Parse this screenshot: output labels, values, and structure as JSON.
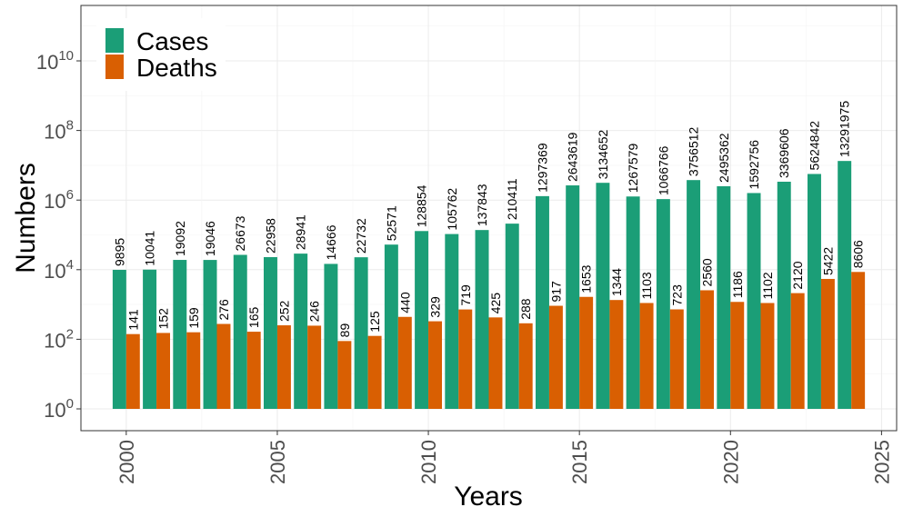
{
  "chart_data": {
    "type": "bar",
    "xlabel": "Years",
    "ylabel": "Numbers",
    "y_scale": "log10",
    "ylim": [
      1,
      100000000000
    ],
    "y_ticks": [
      {
        "value": 1,
        "base": "10",
        "exp": "0"
      },
      {
        "value": 100,
        "base": "10",
        "exp": "2"
      },
      {
        "value": 10000,
        "base": "10",
        "exp": "4"
      },
      {
        "value": 1000000,
        "base": "10",
        "exp": "6"
      },
      {
        "value": 100000000,
        "base": "10",
        "exp": "8"
      },
      {
        "value": 10000000000,
        "base": "10",
        "exp": "10"
      }
    ],
    "xlim": [
      1998.5,
      2025.5
    ],
    "x_ticks": [
      "2000",
      "2005",
      "2010",
      "2015",
      "2020",
      "2025"
    ],
    "grid": true,
    "legend_position": "top-left",
    "x": [
      2000,
      2001,
      2002,
      2003,
      2004,
      2005,
      2006,
      2007,
      2008,
      2009,
      2010,
      2011,
      2012,
      2013,
      2014,
      2015,
      2016,
      2017,
      2018,
      2019,
      2020,
      2021,
      2022,
      2023,
      2024
    ],
    "series": [
      {
        "name": "Cases",
        "color": "#1b9e77",
        "values": [
          9895,
          10041,
          19092,
          19046,
          26673,
          22958,
          28941,
          14666,
          22732,
          52571,
          128854,
          105762,
          137843,
          210411,
          1297369,
          2643619,
          3134652,
          1267579,
          1066766,
          3756512,
          2495362,
          1592756,
          3369606,
          5624842,
          13291975
        ]
      },
      {
        "name": "Deaths",
        "color": "#d95f02",
        "values": [
          141,
          152,
          159,
          276,
          165,
          252,
          246,
          89,
          125,
          440,
          329,
          719,
          425,
          288,
          917,
          1653,
          1344,
          1103,
          723,
          2560,
          1186,
          1102,
          2120,
          5422,
          8606
        ]
      }
    ]
  }
}
